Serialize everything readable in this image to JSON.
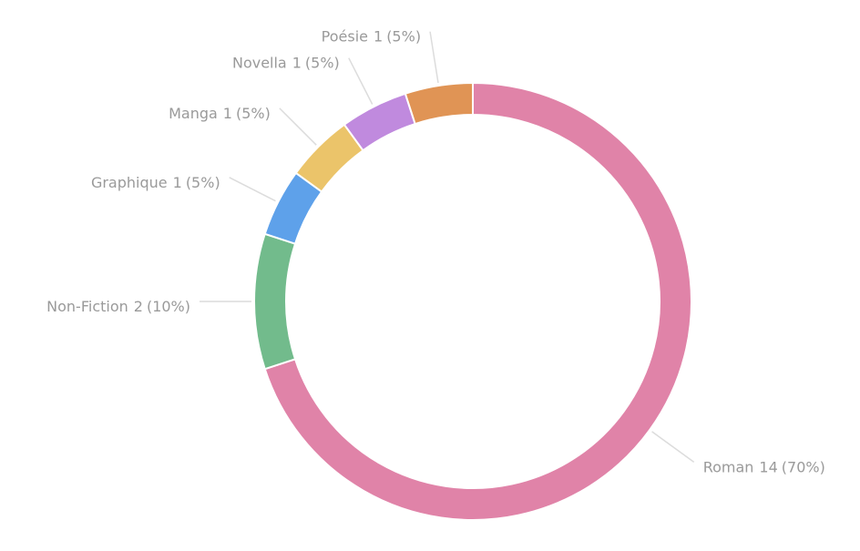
{
  "chart_data": {
    "type": "donut",
    "categories": [
      "Roman",
      "Non-Fiction",
      "Graphique",
      "Manga",
      "Novella",
      "Poésie"
    ],
    "values": [
      14,
      2,
      1,
      1,
      1,
      1
    ],
    "percent_labels": [
      "(70%)",
      "(10%)",
      "(5%)",
      "(5%)",
      "(5%)",
      "(5%)"
    ],
    "colors": [
      "#e083a8",
      "#72bb8c",
      "#5ea1ea",
      "#ebc46a",
      "#c08ade",
      "#e09455"
    ]
  }
}
